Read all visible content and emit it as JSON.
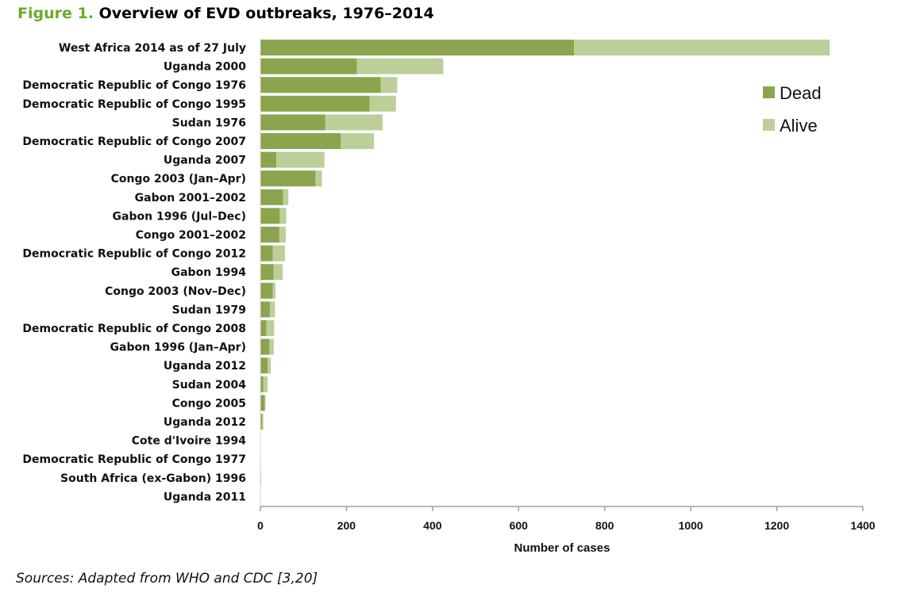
{
  "header": {
    "figure_label": "Figure 1.",
    "title": "Overview of EVD outbreaks, 1976–2014"
  },
  "source": "Sources: Adapted from WHO and CDC [3,20]",
  "colors": {
    "dead": "#8aa54e",
    "alive": "#bdcf99",
    "axis": "#a0a0a0",
    "figure_label": "#6aaa2a"
  },
  "chart_data": {
    "type": "bar",
    "orientation": "horizontal",
    "stacked": true,
    "title": "Overview of EVD outbreaks, 1976–2014",
    "xlabel": "Number of cases",
    "ylabel": "",
    "xlim": [
      0,
      1400
    ],
    "xticks": [
      "0",
      "200",
      "400",
      "600",
      "800",
      "1000",
      "1200",
      "1400"
    ],
    "grid": false,
    "legend_position": "top-right",
    "categories": [
      "West Africa 2014 as of 27 July",
      "Uganda 2000",
      "Democratic Republic of Congo 1976",
      "Democratic Republic of Congo 1995",
      "Sudan 1976",
      "Democratic Republic of Congo 2007",
      "Uganda 2007",
      "Congo 2003 (Jan–Apr)",
      "Gabon 2001–2002",
      "Gabon 1996 (Jul–Dec)",
      "Congo 2001–2002",
      "Democratic Republic of Congo 2012",
      "Gabon 1994",
      "Congo 2003 (Nov–Dec)",
      "Sudan 1979",
      "Democratic Republic of Congo 2008",
      "Gabon 1996 (Jan–Apr)",
      "Uganda 2012",
      "Sudan 2004",
      "Congo 2005",
      "Uganda 2012",
      "Cote d'Ivoire 1994",
      "Democratic Republic of Congo 1977",
      "South Africa (ex-Gabon) 1996",
      "Uganda 2011"
    ],
    "series": [
      {
        "name": "Dead",
        "values": [
          729,
          224,
          280,
          254,
          151,
          187,
          37,
          128,
          53,
          45,
          44,
          29,
          31,
          29,
          22,
          14,
          21,
          17,
          7,
          10,
          4,
          0,
          1,
          1,
          1
        ]
      },
      {
        "name": "Alive",
        "values": [
          594,
          201,
          38,
          61,
          133,
          77,
          112,
          15,
          12,
          15,
          15,
          28,
          21,
          6,
          12,
          18,
          10,
          7,
          10,
          2,
          3,
          1,
          0,
          1,
          0
        ]
      }
    ]
  }
}
